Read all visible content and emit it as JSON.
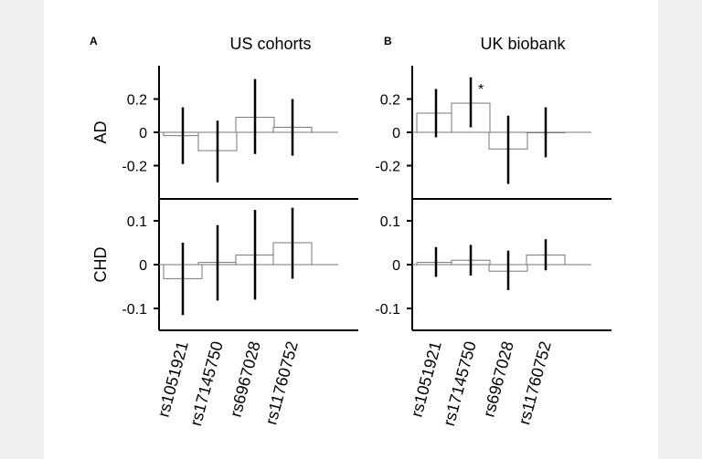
{
  "chart_data": [
    {
      "type": "bar",
      "panel": "A",
      "title": "US cohorts",
      "rows": [
        {
          "name": "AD",
          "ylim": [
            -0.4,
            0.4
          ],
          "yticks": [
            0.2,
            0,
            -0.2
          ],
          "ytick_labels": [
            "0.2",
            "0",
            "-0.2"
          ],
          "values": [
            -0.02,
            -0.11,
            0.09,
            0.03
          ],
          "err_low": [
            -0.19,
            -0.3,
            -0.13,
            -0.14
          ],
          "err_high": [
            0.15,
            0.07,
            0.32,
            0.2
          ],
          "significant": [
            false,
            false,
            false,
            false
          ]
        },
        {
          "name": "CHD",
          "ylim": [
            -0.15,
            0.15
          ],
          "yticks": [
            0.1,
            0,
            -0.1
          ],
          "ytick_labels": [
            "0.1",
            "0",
            "-0.1"
          ],
          "values": [
            -0.032,
            0.005,
            0.022,
            0.05
          ],
          "err_low": [
            -0.115,
            -0.082,
            -0.08,
            -0.032
          ],
          "err_high": [
            0.05,
            0.09,
            0.125,
            0.13
          ],
          "significant": [
            false,
            false,
            false,
            false
          ]
        }
      ]
    },
    {
      "type": "bar",
      "panel": "B",
      "title": "UK biobank",
      "rows": [
        {
          "name": "AD",
          "ylim": [
            -0.4,
            0.4
          ],
          "yticks": [
            0.2,
            0,
            -0.2
          ],
          "ytick_labels": [
            "0.2",
            "0",
            "-0.2"
          ],
          "values": [
            0.115,
            0.175,
            -0.1,
            0
          ],
          "err_low": [
            -0.03,
            0.03,
            -0.31,
            -0.15
          ],
          "err_high": [
            0.26,
            0.33,
            0.1,
            0.15
          ],
          "significant": [
            false,
            true,
            false,
            false
          ]
        },
        {
          "name": "CHD",
          "ylim": [
            -0.15,
            0.15
          ],
          "yticks": [
            0.1,
            0,
            -0.1
          ],
          "ytick_labels": [
            "0.1",
            "0",
            "-0.1"
          ],
          "values": [
            0.005,
            0.01,
            -0.015,
            0.022
          ],
          "err_low": [
            -0.028,
            -0.025,
            -0.058,
            -0.013
          ],
          "err_high": [
            0.04,
            0.045,
            0.032,
            0.058
          ],
          "significant": [
            false,
            false,
            false,
            false
          ]
        }
      ]
    }
  ],
  "categories": [
    "rs1051921",
    "rs17145750",
    "rs6967028",
    "rs11760752"
  ],
  "significance_marker": "*",
  "bar_fill": "#ffffff",
  "bar_stroke": "#777777",
  "errorbar_color": "#000000"
}
